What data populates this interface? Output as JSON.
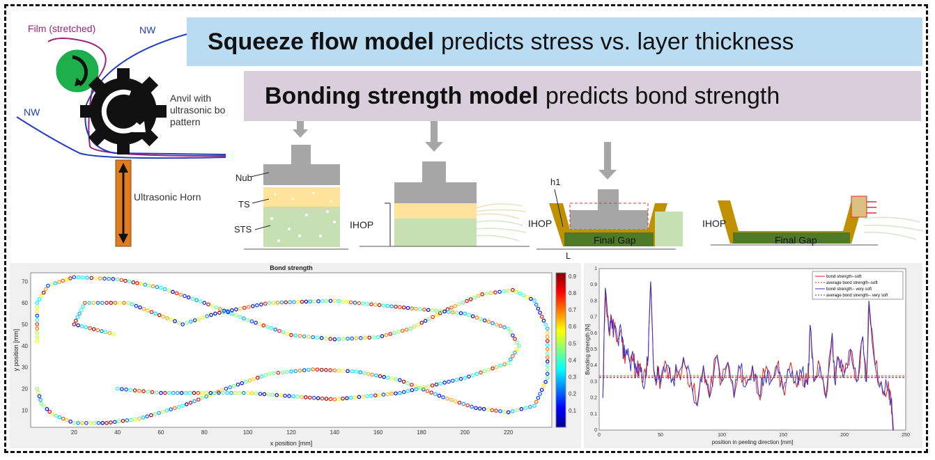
{
  "banners": {
    "squeeze": {
      "bold": "Squeeze flow model",
      "rest": "predicts stress vs. layer thickness"
    },
    "bonding": {
      "bold": "Bonding strength model",
      "rest": "predicts bond strength"
    }
  },
  "process": {
    "film_label": "Film (stretched)",
    "nw_top": "NW",
    "nw_left": "NW",
    "anvil_line1": "Anvil with",
    "anvil_line2": "ultrasonic bo",
    "anvil_line3": "pattern",
    "horn": "Ultrasonic Horn"
  },
  "layers": {
    "nub": "Nub",
    "ts": "TS",
    "sts": "STS",
    "ihop": "IHOP",
    "h1": "h1",
    "final_gap": "Final Gap",
    "l": "L"
  },
  "colors": {
    "banner_blue": "#b9dcf3",
    "banner_purple": "#d9cfdc",
    "gray": "#a6a6a6",
    "ts_yellow": "#fde49a",
    "sts_green": "#c6e0b4",
    "dark_green": "#4e7a27",
    "gold": "#bf9000",
    "horn_orange": "#e07b20"
  },
  "chart_data": [
    {
      "type": "scatter",
      "title": "Bond strength",
      "xlabel": "x position [mm]",
      "ylabel": "y position [mm]",
      "xlim": [
        0,
        240
      ],
      "ylim": [
        2,
        74
      ],
      "xticks": [
        20,
        40,
        60,
        80,
        100,
        120,
        140,
        160,
        180,
        200,
        220
      ],
      "yticks": [
        10,
        20,
        30,
        40,
        50,
        60,
        70
      ],
      "colorbar": {
        "min": 0,
        "max": 0.92,
        "ticks": [
          "0.1",
          "0.2",
          "0.3",
          "0.4",
          "0.5",
          "0.6",
          "0.7",
          "0.8",
          "0.9"
        ]
      },
      "points_color_range": [
        0.05,
        0.92
      ],
      "path": [
        [
          3,
          20
        ],
        [
          5,
          13
        ],
        [
          10,
          8
        ],
        [
          20,
          4
        ],
        [
          35,
          4
        ],
        [
          50,
          6
        ],
        [
          70,
          12
        ],
        [
          90,
          20
        ],
        [
          110,
          27
        ],
        [
          130,
          29
        ],
        [
          150,
          28
        ],
        [
          170,
          24
        ],
        [
          190,
          16
        ],
        [
          205,
          11
        ],
        [
          220,
          9
        ],
        [
          232,
          12
        ],
        [
          238,
          25
        ],
        [
          238,
          48
        ],
        [
          232,
          61
        ],
        [
          222,
          66
        ],
        [
          208,
          64
        ],
        [
          192,
          57
        ],
        [
          175,
          48
        ],
        [
          160,
          44
        ],
        [
          140,
          43
        ],
        [
          120,
          45
        ],
        [
          100,
          52
        ],
        [
          80,
          60
        ],
        [
          60,
          67
        ],
        [
          40,
          71
        ],
        [
          20,
          72
        ],
        [
          8,
          68
        ],
        [
          3,
          60
        ],
        [
          3,
          40
        ]
      ],
      "path2": [
        [
          40,
          20
        ],
        [
          60,
          18
        ],
        [
          100,
          18
        ],
        [
          140,
          15
        ],
        [
          170,
          18
        ],
        [
          200,
          25
        ],
        [
          220,
          32
        ],
        [
          225,
          40
        ],
        [
          220,
          48
        ],
        [
          200,
          55
        ],
        [
          170,
          58
        ],
        [
          140,
          61
        ],
        [
          110,
          60
        ],
        [
          85,
          55
        ],
        [
          70,
          50
        ],
        [
          45,
          60
        ],
        [
          25,
          60
        ],
        [
          20,
          50
        ],
        [
          40,
          45
        ]
      ]
    },
    {
      "type": "line",
      "xlabel": "position in peeling direction [mm]",
      "ylabel": "Bonding strength [N]",
      "xlim": [
        0,
        250
      ],
      "ylim": [
        0,
        1
      ],
      "xticks": [
        0,
        50,
        100,
        150,
        200,
        250
      ],
      "yticks": [
        0,
        0.1,
        0.2,
        0.3,
        0.4,
        0.5,
        0.6,
        0.7,
        0.8,
        0.9,
        1
      ],
      "legend": "top-right",
      "series": [
        {
          "name": "bond strength--soft",
          "color": "#e41a1c",
          "dash": false
        },
        {
          "name": "average bond strength--soft",
          "color": "#e41a1c",
          "dash": true,
          "value": 0.335
        },
        {
          "name": "bond strength-- very soft",
          "color": "#3333cc",
          "dash": false
        },
        {
          "name": "average bond strength-- very soft",
          "color": "#3333cc",
          "dash": true,
          "value": 0.325
        }
      ],
      "x": [
        3,
        5,
        8,
        10,
        12,
        15,
        18,
        20,
        22,
        25,
        28,
        30,
        33,
        35,
        38,
        40,
        42,
        44,
        46,
        48,
        50,
        55,
        60,
        65,
        70,
        75,
        80,
        85,
        90,
        95,
        100,
        105,
        110,
        115,
        120,
        125,
        130,
        135,
        140,
        145,
        150,
        155,
        160,
        165,
        170,
        172,
        175,
        180,
        185,
        190,
        192,
        195,
        200,
        205,
        210,
        215,
        218,
        220,
        225,
        230,
        235,
        238,
        240
      ],
      "y": [
        0.2,
        0.88,
        0.6,
        0.7,
        0.62,
        0.56,
        0.62,
        0.45,
        0.5,
        0.42,
        0.45,
        0.36,
        0.4,
        0.3,
        0.35,
        0.45,
        0.92,
        0.45,
        0.3,
        0.36,
        0.28,
        0.4,
        0.32,
        0.36,
        0.4,
        0.3,
        0.15,
        0.4,
        0.2,
        0.45,
        0.3,
        0.42,
        0.2,
        0.38,
        0.28,
        0.4,
        0.22,
        0.35,
        0.3,
        0.4,
        0.25,
        0.38,
        0.3,
        0.35,
        0.28,
        0.65,
        0.3,
        0.4,
        0.2,
        0.6,
        0.3,
        0.45,
        0.35,
        0.5,
        0.3,
        0.58,
        0.3,
        0.8,
        0.4,
        0.3,
        0.25,
        0.2,
        0.0
      ]
    }
  ]
}
